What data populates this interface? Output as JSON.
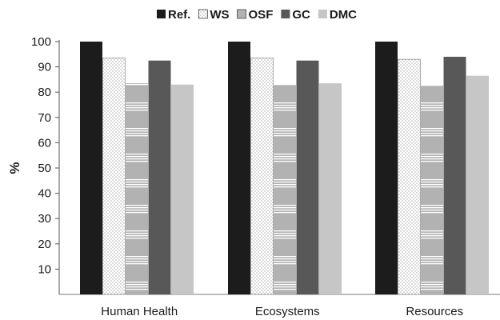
{
  "chart_data": {
    "type": "bar",
    "title": "",
    "xlabel": "",
    "ylabel": "%",
    "ylim": [
      0,
      100
    ],
    "yticks": [
      10,
      20,
      30,
      40,
      50,
      60,
      70,
      80,
      90,
      100
    ],
    "grid": false,
    "legend_position": "top",
    "categories": [
      "Human Health",
      "Ecosystems",
      "Resources"
    ],
    "series": [
      {
        "name": "Ref.",
        "values": [
          100,
          100,
          100
        ],
        "color": "#1c1c1c",
        "pattern": "solid"
      },
      {
        "name": "WS",
        "values": [
          93.5,
          93.5,
          93
        ],
        "color": "#ffffff",
        "pattern": "dots"
      },
      {
        "name": "OSF",
        "values": [
          83.5,
          83,
          82.5
        ],
        "color": "#b0b0b0",
        "pattern": "hstripes"
      },
      {
        "name": "GC",
        "values": [
          92.5,
          92.5,
          94
        ],
        "color": "#585858",
        "pattern": "solid"
      },
      {
        "name": "DMC",
        "values": [
          83,
          83.5,
          86.5
        ],
        "color": "#c6c6c6",
        "pattern": "solid"
      }
    ]
  }
}
